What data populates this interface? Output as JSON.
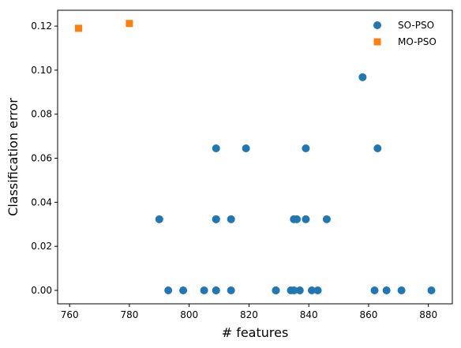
{
  "chart_data": {
    "type": "scatter",
    "title": "",
    "xlabel": "# features",
    "ylabel": "Classification error",
    "xlim": [
      756,
      888
    ],
    "ylim": [
      -0.0061,
      0.1272
    ],
    "xticks": [
      760,
      780,
      800,
      820,
      840,
      860,
      880
    ],
    "yticks": [
      0.0,
      0.02,
      0.04,
      0.06,
      0.08,
      0.1,
      0.12
    ],
    "ytick_labels": [
      "0.00",
      "0.02",
      "0.04",
      "0.06",
      "0.08",
      "0.10",
      "0.12"
    ],
    "grid": false,
    "legend_position": "top-right",
    "series": [
      {
        "name": "SO-PSO",
        "marker": "circle",
        "color": "#1f77b4",
        "points": [
          [
            790,
            0.0323
          ],
          [
            793,
            0.0
          ],
          [
            798,
            0.0
          ],
          [
            805,
            0.0
          ],
          [
            809,
            0.0645
          ],
          [
            809,
            0.0323
          ],
          [
            809,
            0.0323
          ],
          [
            809,
            0.0
          ],
          [
            809,
            0.0
          ],
          [
            814,
            0.0323
          ],
          [
            814,
            0.0
          ],
          [
            819,
            0.0645
          ],
          [
            829,
            0.0
          ],
          [
            829,
            0.0
          ],
          [
            834,
            0.0
          ],
          [
            835,
            0.0323
          ],
          [
            835,
            0.0
          ],
          [
            836,
            0.0323
          ],
          [
            837,
            0.0
          ],
          [
            839,
            0.0645
          ],
          [
            839,
            0.0323
          ],
          [
            841,
            0.0
          ],
          [
            843,
            0.0
          ],
          [
            846,
            0.0323
          ],
          [
            858,
            0.0968
          ],
          [
            862,
            0.0
          ],
          [
            863,
            0.0645
          ],
          [
            866,
            0.0
          ],
          [
            871,
            0.0
          ],
          [
            881,
            0.0
          ]
        ]
      },
      {
        "name": "MO-PSO",
        "marker": "square",
        "color": "#ff7f0e",
        "points": [
          [
            763,
            0.119
          ],
          [
            780,
            0.1212
          ]
        ]
      }
    ]
  }
}
